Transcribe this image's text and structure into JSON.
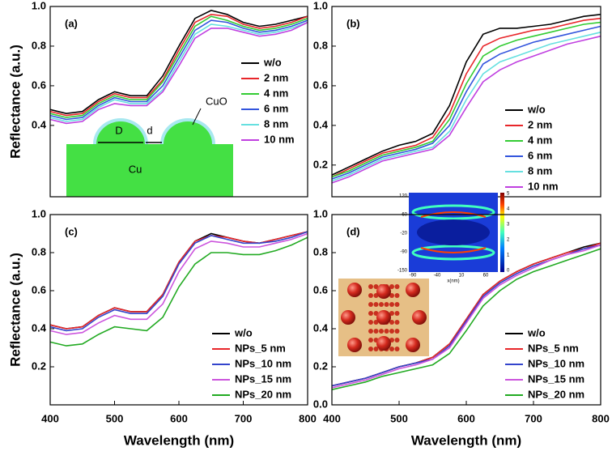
{
  "chart_data": [
    {
      "type": "line",
      "label": "(a)",
      "y_label": "Reflectance (a.u.)",
      "legend": "center right",
      "xlim": [
        400,
        800
      ],
      "ylim": [
        0.04,
        1.0
      ],
      "yticks": [
        0.4,
        0.6,
        0.8,
        {
          "value": 1.0,
          "label": "1.0"
        }
      ],
      "x": [
        400,
        425,
        450,
        475,
        500,
        525,
        550,
        575,
        600,
        625,
        650,
        675,
        700,
        725,
        750,
        775,
        800
      ],
      "annotations": [
        "CuO",
        "D",
        "d",
        "Cu"
      ],
      "series": [
        {
          "name": "w/o",
          "color": "#000000",
          "values": [
            0.48,
            0.46,
            0.47,
            0.53,
            0.57,
            0.55,
            0.55,
            0.65,
            0.8,
            0.94,
            0.98,
            0.96,
            0.92,
            0.9,
            0.91,
            0.93,
            0.95
          ]
        },
        {
          "name": "2 nm",
          "color": "#e8262a",
          "values": [
            0.47,
            0.45,
            0.46,
            0.52,
            0.56,
            0.54,
            0.54,
            0.63,
            0.78,
            0.92,
            0.96,
            0.95,
            0.91,
            0.89,
            0.9,
            0.92,
            0.95
          ]
        },
        {
          "name": "4 nm",
          "color": "#33cc33",
          "values": [
            0.46,
            0.44,
            0.45,
            0.51,
            0.55,
            0.53,
            0.53,
            0.62,
            0.76,
            0.9,
            0.95,
            0.93,
            0.9,
            0.88,
            0.89,
            0.91,
            0.94
          ]
        },
        {
          "name": "6 nm",
          "color": "#3355dd",
          "values": [
            0.45,
            0.43,
            0.44,
            0.5,
            0.54,
            0.52,
            0.52,
            0.6,
            0.74,
            0.88,
            0.93,
            0.92,
            0.89,
            0.87,
            0.88,
            0.9,
            0.93
          ]
        },
        {
          "name": "8 nm",
          "color": "#66e0e0",
          "values": [
            0.44,
            0.42,
            0.43,
            0.49,
            0.53,
            0.51,
            0.51,
            0.58,
            0.72,
            0.86,
            0.91,
            0.9,
            0.88,
            0.86,
            0.87,
            0.89,
            0.92
          ]
        },
        {
          "name": "10 nm",
          "color": "#c040e0",
          "values": [
            0.43,
            0.41,
            0.42,
            0.48,
            0.51,
            0.5,
            0.5,
            0.57,
            0.7,
            0.84,
            0.89,
            0.89,
            0.87,
            0.85,
            0.86,
            0.88,
            0.92
          ]
        }
      ]
    },
    {
      "type": "line",
      "label": "(b)",
      "legend": "lower right",
      "xlim": [
        400,
        800
      ],
      "ylim": [
        0.04,
        1.0
      ],
      "yticks": [
        0.2,
        0.4,
        0.6,
        0.8,
        {
          "value": 1.0,
          "label": "1.0"
        }
      ],
      "x": [
        400,
        425,
        450,
        475,
        500,
        525,
        550,
        575,
        600,
        625,
        650,
        675,
        700,
        725,
        750,
        775,
        800
      ],
      "series": [
        {
          "name": "w/o",
          "color": "#000000",
          "values": [
            0.15,
            0.19,
            0.23,
            0.27,
            0.3,
            0.32,
            0.36,
            0.5,
            0.72,
            0.86,
            0.89,
            0.89,
            0.9,
            0.91,
            0.93,
            0.95,
            0.96
          ]
        },
        {
          "name": "2 nm",
          "color": "#e8262a",
          "values": [
            0.14,
            0.18,
            0.22,
            0.26,
            0.28,
            0.3,
            0.34,
            0.46,
            0.66,
            0.8,
            0.84,
            0.86,
            0.88,
            0.89,
            0.91,
            0.93,
            0.94
          ]
        },
        {
          "name": "4 nm",
          "color": "#33cc33",
          "values": [
            0.14,
            0.17,
            0.21,
            0.25,
            0.27,
            0.29,
            0.32,
            0.43,
            0.61,
            0.75,
            0.8,
            0.83,
            0.85,
            0.87,
            0.89,
            0.91,
            0.92
          ]
        },
        {
          "name": "6 nm",
          "color": "#3355dd",
          "values": [
            0.13,
            0.16,
            0.2,
            0.24,
            0.26,
            0.28,
            0.31,
            0.4,
            0.57,
            0.71,
            0.76,
            0.79,
            0.82,
            0.84,
            0.86,
            0.88,
            0.9
          ]
        },
        {
          "name": "8 nm",
          "color": "#66e0e0",
          "values": [
            0.12,
            0.15,
            0.19,
            0.23,
            0.25,
            0.27,
            0.29,
            0.37,
            0.53,
            0.66,
            0.72,
            0.75,
            0.78,
            0.81,
            0.83,
            0.85,
            0.87
          ]
        },
        {
          "name": "10 nm",
          "color": "#c040e0",
          "values": [
            0.11,
            0.14,
            0.18,
            0.22,
            0.24,
            0.26,
            0.28,
            0.35,
            0.49,
            0.62,
            0.68,
            0.72,
            0.75,
            0.78,
            0.81,
            0.83,
            0.85
          ]
        }
      ]
    },
    {
      "type": "line",
      "label": "(c)",
      "y_label": "Reflectance (a.u.)",
      "x_label": "Wavelength (nm)",
      "legend": "lower right",
      "xlim": [
        400,
        800
      ],
      "ylim": [
        0.0,
        1.0
      ],
      "xticks": [
        400,
        500,
        600,
        700,
        800
      ],
      "yticks": [
        0.2,
        0.4,
        0.6,
        0.8,
        {
          "value": 1.0,
          "label": "1.0"
        }
      ],
      "x": [
        400,
        425,
        450,
        475,
        500,
        525,
        550,
        575,
        600,
        625,
        650,
        675,
        700,
        725,
        750,
        775,
        800
      ],
      "series": [
        {
          "name": "w/o",
          "color": "#000000",
          "values": [
            0.42,
            0.4,
            0.41,
            0.47,
            0.51,
            0.49,
            0.49,
            0.58,
            0.75,
            0.86,
            0.9,
            0.88,
            0.86,
            0.85,
            0.87,
            0.89,
            0.91
          ]
        },
        {
          "name": "NPs_5 nm",
          "color": "#e8262a",
          "values": [
            0.42,
            0.4,
            0.41,
            0.47,
            0.51,
            0.49,
            0.49,
            0.58,
            0.75,
            0.86,
            0.89,
            0.88,
            0.86,
            0.85,
            0.87,
            0.89,
            0.91
          ]
        },
        {
          "name": "NPs_10 nm",
          "color": "#3344cc",
          "values": [
            0.41,
            0.39,
            0.4,
            0.46,
            0.5,
            0.48,
            0.48,
            0.57,
            0.74,
            0.85,
            0.89,
            0.87,
            0.85,
            0.85,
            0.86,
            0.88,
            0.91
          ]
        },
        {
          "name": "NPs_15 nm",
          "color": "#cc55dd",
          "values": [
            0.39,
            0.37,
            0.38,
            0.43,
            0.47,
            0.45,
            0.45,
            0.53,
            0.7,
            0.82,
            0.86,
            0.85,
            0.83,
            0.83,
            0.85,
            0.87,
            0.9
          ]
        },
        {
          "name": "NPs_20 nm",
          "color": "#22aa22",
          "values": [
            0.33,
            0.31,
            0.32,
            0.37,
            0.41,
            0.4,
            0.39,
            0.46,
            0.62,
            0.74,
            0.8,
            0.8,
            0.79,
            0.79,
            0.81,
            0.84,
            0.88
          ]
        }
      ]
    },
    {
      "type": "line",
      "label": "(d)",
      "x_label": "Wavelength (nm)",
      "legend": "lower right",
      "xlim": [
        400,
        800
      ],
      "ylim": [
        0.0,
        1.0
      ],
      "xticks": [
        400,
        500,
        600,
        700,
        800
      ],
      "yticks": [
        {
          "value": 0.0,
          "label": "0.0"
        },
        0.2,
        0.4,
        0.6,
        0.8,
        {
          "value": 1.0,
          "label": "1.0"
        }
      ],
      "x": [
        400,
        425,
        450,
        475,
        500,
        525,
        550,
        575,
        600,
        625,
        650,
        675,
        700,
        725,
        750,
        775,
        800
      ],
      "inset": {
        "y_labels": [
          "120",
          "60",
          "-20",
          "-90",
          "-150"
        ],
        "x_labels": [
          "-90",
          "-40",
          "10",
          "60"
        ],
        "x_label": "x(nm)",
        "colorbar_labels": [
          "0",
          "1",
          "2",
          "3",
          "4",
          "5"
        ]
      },
      "series": [
        {
          "name": "w/o",
          "color": "#000000",
          "values": [
            0.1,
            0.12,
            0.14,
            0.17,
            0.2,
            0.22,
            0.25,
            0.32,
            0.45,
            0.58,
            0.65,
            0.7,
            0.74,
            0.77,
            0.8,
            0.83,
            0.85
          ]
        },
        {
          "name": "NPs_5 nm",
          "color": "#e8262a",
          "values": [
            0.1,
            0.12,
            0.14,
            0.17,
            0.2,
            0.22,
            0.25,
            0.32,
            0.45,
            0.58,
            0.65,
            0.7,
            0.74,
            0.77,
            0.8,
            0.82,
            0.85
          ]
        },
        {
          "name": "NPs_10 nm",
          "color": "#3344cc",
          "values": [
            0.1,
            0.12,
            0.14,
            0.17,
            0.2,
            0.22,
            0.24,
            0.31,
            0.44,
            0.57,
            0.64,
            0.69,
            0.73,
            0.76,
            0.79,
            0.82,
            0.84
          ]
        },
        {
          "name": "NPs_15 nm",
          "color": "#cc55dd",
          "values": [
            0.09,
            0.11,
            0.13,
            0.16,
            0.19,
            0.21,
            0.24,
            0.3,
            0.43,
            0.56,
            0.63,
            0.68,
            0.72,
            0.76,
            0.79,
            0.81,
            0.84
          ]
        },
        {
          "name": "NPs_20 nm",
          "color": "#22aa22",
          "values": [
            0.08,
            0.1,
            0.12,
            0.15,
            0.17,
            0.19,
            0.21,
            0.27,
            0.39,
            0.52,
            0.6,
            0.66,
            0.7,
            0.73,
            0.76,
            0.79,
            0.82
          ]
        }
      ]
    }
  ]
}
